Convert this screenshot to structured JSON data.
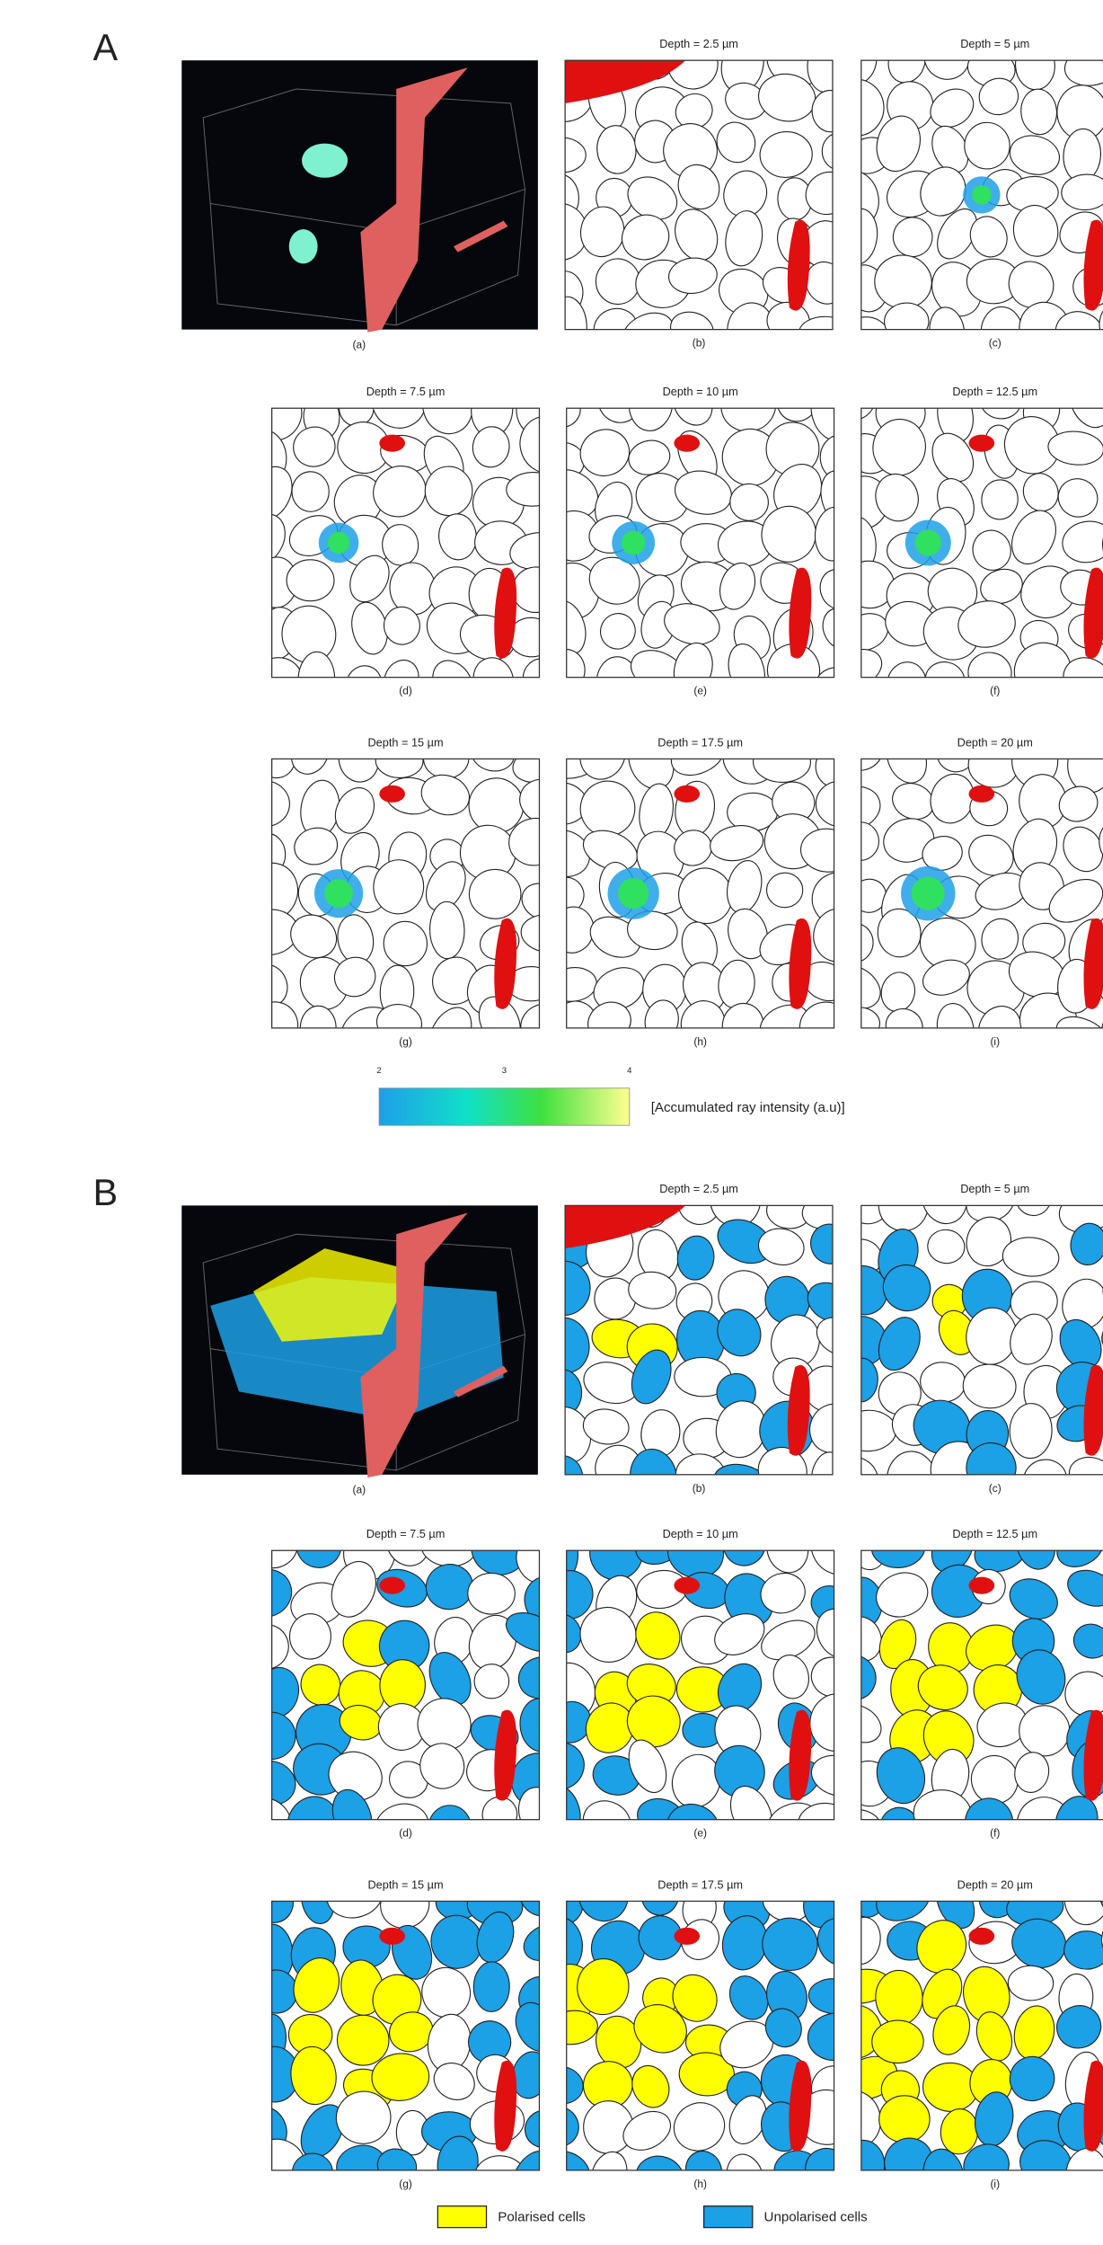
{
  "panels": [
    {
      "label": "A",
      "image_caption": "(a)",
      "slices": [
        {
          "title": "Depth = 2.5 µm",
          "caption": "(b)"
        },
        {
          "title": "Depth = 5 µm",
          "caption": "(c)"
        },
        {
          "title": "Depth = 7.5 µm",
          "caption": "(d)"
        },
        {
          "title": "Depth = 10 µm",
          "caption": "(e)"
        },
        {
          "title": "Depth = 12.5 µm",
          "caption": "(f)"
        },
        {
          "title": "Depth = 15 µm",
          "caption": "(g)"
        },
        {
          "title": "Depth = 17.5 µm",
          "caption": "(h)"
        },
        {
          "title": "Depth = 20 µm",
          "caption": "(i)"
        }
      ],
      "colorbar": {
        "ticks": [
          2,
          3,
          4
        ],
        "label": "[Accumulated ray intensity (a.u)]"
      }
    },
    {
      "label": "B",
      "image_caption": "(a)",
      "slices": [
        {
          "title": "Depth = 2.5 µm",
          "caption": "(b)"
        },
        {
          "title": "Depth = 5 µm",
          "caption": "(c)"
        },
        {
          "title": "Depth = 7.5 µm",
          "caption": "(d)"
        },
        {
          "title": "Depth = 10 µm",
          "caption": "(e)"
        },
        {
          "title": "Depth = 12.5 µm",
          "caption": "(f)"
        },
        {
          "title": "Depth = 15 µm",
          "caption": "(g)"
        },
        {
          "title": "Depth = 17.5 µm",
          "caption": "(h)"
        },
        {
          "title": "Depth = 20 µm",
          "caption": "(i)"
        }
      ],
      "legend": [
        {
          "label": "Polarised cells",
          "color": "#ffff00"
        },
        {
          "label": "Unpolarised cells",
          "color": "#1ca0e6"
        }
      ]
    }
  ]
}
